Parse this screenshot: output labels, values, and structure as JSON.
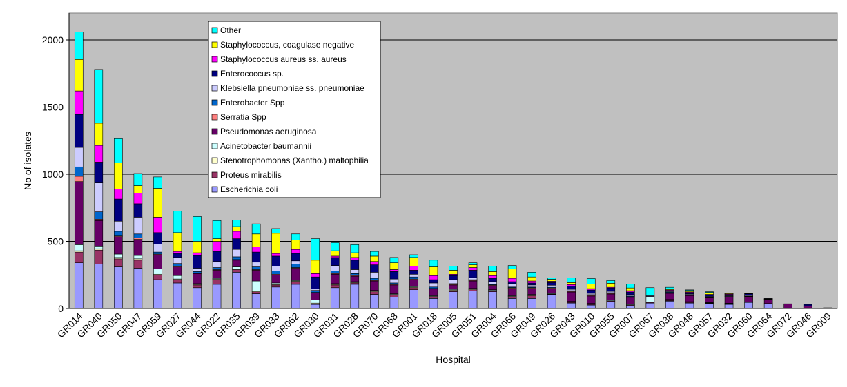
{
  "chart_data": {
    "type": "bar",
    "stacked": true,
    "title": "",
    "xlabel": "Hospital",
    "ylabel": "No of isolates",
    "ylim": [
      0,
      2200
    ],
    "yticks": [
      0,
      500,
      1000,
      1500,
      2000
    ],
    "grid": true,
    "legend_position": "top-left",
    "plot_background": "#C0C0C0",
    "categories": [
      "GR014",
      "GR040",
      "GR050",
      "GR047",
      "GR059",
      "GR027",
      "GR044",
      "GR022",
      "GR035",
      "GR039",
      "GR033",
      "GR062",
      "GR030",
      "GR031",
      "GR028",
      "GR070",
      "GR068",
      "GR001",
      "GR018",
      "GR005",
      "GR051",
      "GR004",
      "GR066",
      "GR049",
      "GR026",
      "GR043",
      "GR010",
      "GR055",
      "GR007",
      "GR067",
      "GR038",
      "GR048",
      "GR057",
      "GR032",
      "GR060",
      "GR064",
      "GR072",
      "GR046",
      "GR009"
    ],
    "series": [
      {
        "name": "Escherichia coli",
        "color": "#9999FF",
        "values": [
          340,
          330,
          310,
          300,
          215,
          190,
          155,
          180,
          270,
          110,
          160,
          180,
          30,
          155,
          180,
          105,
          85,
          140,
          75,
          125,
          130,
          125,
          75,
          75,
          100,
          40,
          25,
          50,
          20,
          40,
          55,
          40,
          35,
          30,
          45,
          35,
          0,
          0,
          0
        ]
      },
      {
        "name": "Proteus mirabilis",
        "color": "#993366",
        "values": [
          80,
          105,
          60,
          60,
          35,
          25,
          20,
          35,
          20,
          15,
          15,
          20,
          5,
          20,
          10,
          20,
          15,
          15,
          10,
          10,
          10,
          5,
          10,
          20,
          5,
          5,
          5,
          5,
          5,
          5,
          5,
          5,
          3,
          3,
          3,
          2,
          0,
          0,
          0
        ]
      },
      {
        "name": "Stenotrophomonas (Xantho.) maltophilia",
        "color": "#FFFFCC",
        "values": [
          10,
          10,
          10,
          10,
          5,
          5,
          5,
          5,
          5,
          5,
          5,
          5,
          5,
          5,
          5,
          5,
          5,
          5,
          5,
          5,
          5,
          5,
          5,
          5,
          3,
          3,
          3,
          3,
          3,
          0,
          3,
          3,
          3,
          3,
          0,
          0,
          0,
          0,
          0
        ]
      },
      {
        "name": "Acinetobacter baumannii",
        "color": "#CCFFFF",
        "values": [
          45,
          20,
          25,
          25,
          40,
          25,
          5,
          5,
          15,
          75,
          10,
          5,
          25,
          5,
          5,
          5,
          5,
          5,
          5,
          5,
          5,
          5,
          5,
          5,
          5,
          5,
          5,
          5,
          5,
          40,
          5,
          3,
          3,
          3,
          0,
          0,
          0,
          0,
          0
        ]
      },
      {
        "name": "Pseudomonas aeruginosa",
        "color": "#660066",
        "values": [
          470,
          190,
          130,
          120,
          105,
          65,
          75,
          60,
          50,
          80,
          60,
          90,
          50,
          70,
          40,
          70,
          65,
          50,
          50,
          30,
          55,
          30,
          55,
          45,
          35,
          70,
          55,
          45,
          50,
          5,
          45,
          45,
          35,
          45,
          40,
          30,
          35,
          20,
          5
        ]
      },
      {
        "name": "Serratia Spp",
        "color": "#FF8080",
        "values": [
          40,
          10,
          10,
          10,
          5,
          5,
          5,
          5,
          5,
          5,
          5,
          5,
          5,
          5,
          5,
          5,
          5,
          5,
          5,
          5,
          5,
          5,
          5,
          5,
          5,
          5,
          5,
          5,
          5,
          0,
          5,
          3,
          3,
          3,
          3,
          3,
          0,
          0,
          0
        ]
      },
      {
        "name": "Enterobacter Spp",
        "color": "#0066CC",
        "values": [
          70,
          55,
          30,
          30,
          15,
          20,
          10,
          15,
          20,
          20,
          25,
          25,
          15,
          20,
          15,
          15,
          10,
          15,
          10,
          5,
          5,
          5,
          5,
          5,
          5,
          5,
          5,
          5,
          5,
          0,
          5,
          5,
          3,
          3,
          3,
          2,
          0,
          0,
          0
        ]
      },
      {
        "name": "Klebsiella pneumoniae ss. pneumoniae",
        "color": "#CCCCFF",
        "values": [
          145,
          215,
          75,
          125,
          60,
          45,
          25,
          45,
          55,
          35,
          35,
          25,
          10,
          40,
          30,
          45,
          30,
          20,
          30,
          30,
          15,
          20,
          25,
          15,
          15,
          10,
          10,
          10,
          10,
          5,
          5,
          5,
          5,
          5,
          5,
          0,
          0,
          0,
          0
        ]
      },
      {
        "name": "Enterococcus sp.",
        "color": "#000080",
        "values": [
          245,
          155,
          165,
          100,
          85,
          30,
          95,
          75,
          80,
          75,
          75,
          55,
          90,
          60,
          70,
          55,
          55,
          30,
          25,
          30,
          55,
          25,
          15,
          15,
          20,
          25,
          25,
          25,
          20,
          0,
          5,
          10,
          10,
          10,
          10,
          3,
          0,
          10,
          0
        ]
      },
      {
        "name": "Staphylococcus aureus ss. aureus",
        "color": "#FF00FF",
        "values": [
          175,
          125,
          75,
          80,
          115,
          15,
          20,
          75,
          55,
          40,
          20,
          30,
          25,
          10,
          20,
          25,
          15,
          30,
          30,
          10,
          20,
          20,
          25,
          15,
          10,
          10,
          10,
          5,
          10,
          0,
          5,
          5,
          5,
          5,
          3,
          0,
          0,
          0,
          0
        ]
      },
      {
        "name": "Staphylococcus, coagulase negative",
        "color": "#FFFF00",
        "values": [
          235,
          165,
          195,
          55,
          215,
          140,
          85,
          20,
          35,
          95,
          150,
          70,
          100,
          40,
          35,
          40,
          50,
          65,
          65,
          30,
          20,
          30,
          70,
          30,
          15,
          15,
          35,
          30,
          20,
          0,
          5,
          10,
          15,
          5,
          0,
          0,
          0,
          0,
          0
        ]
      },
      {
        "name": "Other",
        "color": "#00FFFF",
        "values": [
          205,
          400,
          180,
          90,
          85,
          160,
          185,
          135,
          50,
          75,
          35,
          45,
          160,
          60,
          60,
          35,
          40,
          20,
          50,
          30,
          15,
          40,
          25,
          35,
          10,
          35,
          40,
          20,
          30,
          60,
          15,
          5,
          5,
          0,
          0,
          0,
          0,
          0,
          0
        ]
      }
    ]
  }
}
